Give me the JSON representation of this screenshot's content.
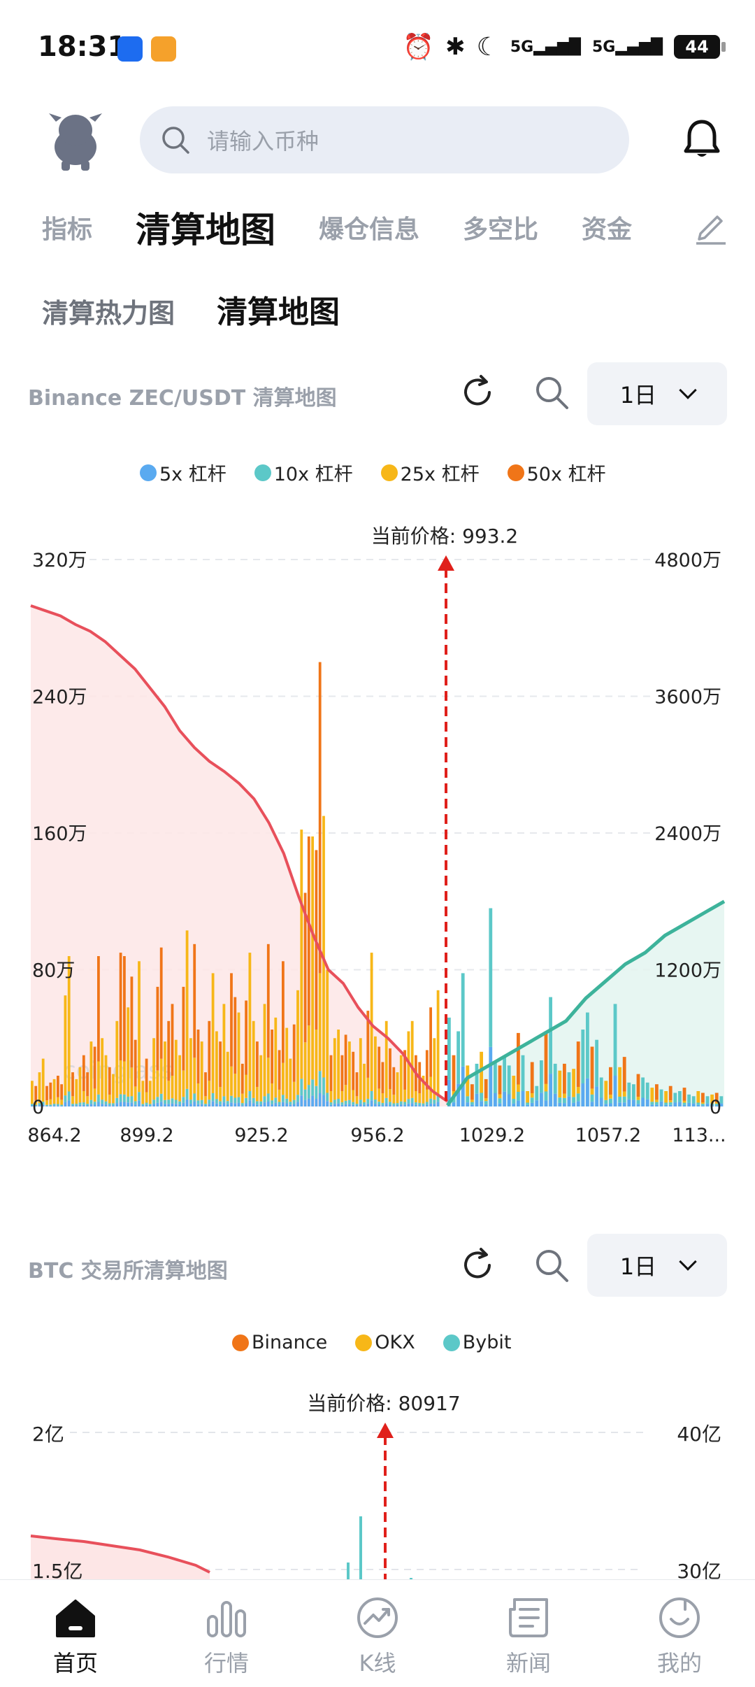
{
  "status_bar": {
    "time": "18:31",
    "battery": "44",
    "network_1": "5G",
    "network_2": "5G"
  },
  "search": {
    "placeholder": "请输入币种"
  },
  "tabs": [
    "指标",
    "清算地图",
    "爆仓信息",
    "多空比",
    "资金"
  ],
  "active_tab": "清算地图",
  "subtabs": [
    "清算热力图",
    "清算地图"
  ],
  "active_subtab": "清算地图",
  "watermark": "coinglass",
  "card1": {
    "title": "Binance ZEC/USDT 清算地图",
    "period": "1日",
    "legend": [
      {
        "label": "5x 杠杆",
        "color": "#5aaaf0"
      },
      {
        "label": "10x 杠杆",
        "color": "#5cc8c8"
      },
      {
        "label": "25x 杠杆",
        "color": "#f7b718"
      },
      {
        "label": "50x 杠杆",
        "color": "#f07518"
      }
    ],
    "current_price_label": "当前价格: 993.2"
  },
  "card2": {
    "title": "BTC 交易所清算地图",
    "period": "1日",
    "legend": [
      {
        "label": "Binance",
        "color": "#f07518"
      },
      {
        "label": "OKX",
        "color": "#f7b718"
      },
      {
        "label": "Bybit",
        "color": "#5cc8c8"
      }
    ],
    "current_price_label": "当前价格: 80917"
  },
  "nav": [
    {
      "label": "首页",
      "icon": "home-icon",
      "active": true
    },
    {
      "label": "行情",
      "icon": "market-icon",
      "active": false
    },
    {
      "label": "K线",
      "icon": "kline-icon",
      "active": false
    },
    {
      "label": "新闻",
      "icon": "news-icon",
      "active": false
    },
    {
      "label": "我的",
      "icon": "profile-icon",
      "active": false
    }
  ],
  "chart_data": [
    {
      "type": "bar",
      "title": "Binance ZEC/USDT 清算地图",
      "x_tick_labels": [
        "864.2",
        "899.2",
        "925.2",
        "956.2",
        "1029.2",
        "1057.2",
        "113..."
      ],
      "y_left_ticks": [
        "0",
        "80万",
        "160万",
        "240万",
        "320万"
      ],
      "y_right_ticks": [
        "0",
        "1200万",
        "2400万",
        "3600万",
        "4800万"
      ],
      "ylim_left": [
        0,
        3200000
      ],
      "ylim_right": [
        0,
        48000000
      ],
      "current_price": 993.2,
      "series_names": [
        "5x 杠杆",
        "10x 杠杆",
        "25x 杠杆",
        "50x 杠杆"
      ],
      "bars_left_total": [
        150000,
        120000,
        200000,
        280000,
        120000,
        140000,
        160000,
        180000,
        130000,
        650000,
        880000,
        200000,
        160000,
        230000,
        300000,
        200000,
        380000,
        350000,
        880000,
        400000,
        300000,
        230000,
        190000,
        500000,
        900000,
        880000,
        580000,
        760000,
        390000,
        850000,
        150000,
        280000,
        150000,
        400000,
        700000,
        930000,
        380000,
        500000,
        600000,
        390000,
        300000,
        700000,
        1030000,
        400000,
        950000,
        450000,
        380000,
        200000,
        500000,
        780000,
        440000,
        380000,
        600000,
        320000,
        780000,
        640000,
        550000,
        250000,
        620000,
        900000,
        500000,
        380000,
        300000,
        600000,
        950000,
        450000,
        520000,
        330000,
        850000,
        460000,
        280000,
        480000,
        680000,
        1620000,
        1250000,
        1580000,
        1580000,
        1500000,
        2600000,
        1700000,
        800000,
        300000,
        400000,
        450000,
        300000,
        420000,
        380000,
        320000,
        200000,
        400000,
        250000,
        560000,
        900000,
        410000,
        350000,
        260000,
        500000,
        340000,
        230000,
        200000,
        300000,
        330000,
        440000,
        500000,
        300000,
        260000,
        180000,
        330000,
        580000,
        400000,
        680000
      ],
      "bars_right_total": [
        520000,
        300000,
        440000,
        780000,
        240000,
        130000,
        250000,
        320000,
        160000,
        1160000,
        260000,
        240000,
        290000,
        240000,
        180000,
        430000,
        300000,
        90000,
        260000,
        120000,
        270000,
        440000,
        640000,
        250000,
        210000,
        250000,
        200000,
        220000,
        380000,
        450000,
        550000,
        350000,
        390000,
        170000,
        150000,
        230000,
        600000,
        230000,
        290000,
        140000,
        130000,
        190000,
        170000,
        140000,
        110000,
        130000,
        100000,
        90000,
        120000,
        80000,
        90000,
        110000,
        70000,
        60000,
        90000,
        80000,
        60000,
        70000,
        80000,
        60000
      ],
      "cumulative_short_left_axis_units": [
        2930000,
        2900000,
        2870000,
        2820000,
        2780000,
        2720000,
        2640000,
        2560000,
        2450000,
        2340000,
        2200000,
        2100000,
        2020000,
        1960000,
        1890000,
        1800000,
        1660000,
        1480000,
        1230000,
        1000000,
        800000,
        720000,
        580000,
        470000,
        400000,
        310000,
        180000,
        90000,
        30000
      ],
      "cumulative_long_right_axis_units": [
        100000,
        2500000,
        3500000,
        4500000,
        5500000,
        6500000,
        7500000,
        9500000,
        11000000,
        12500000,
        13500000,
        15000000,
        16000000,
        17000000,
        18000000
      ]
    },
    {
      "type": "bar",
      "title": "BTC 交易所清算地图",
      "y_left_ticks": [
        "1.5亿",
        "2亿"
      ],
      "y_right_ticks": [
        "30亿",
        "40亿"
      ],
      "ylim_left": [
        0,
        200000000
      ],
      "ylim_right": [
        0,
        4000000000
      ],
      "current_price": 80917,
      "series_names": [
        "Binance",
        "OKX",
        "Bybit"
      ]
    }
  ]
}
